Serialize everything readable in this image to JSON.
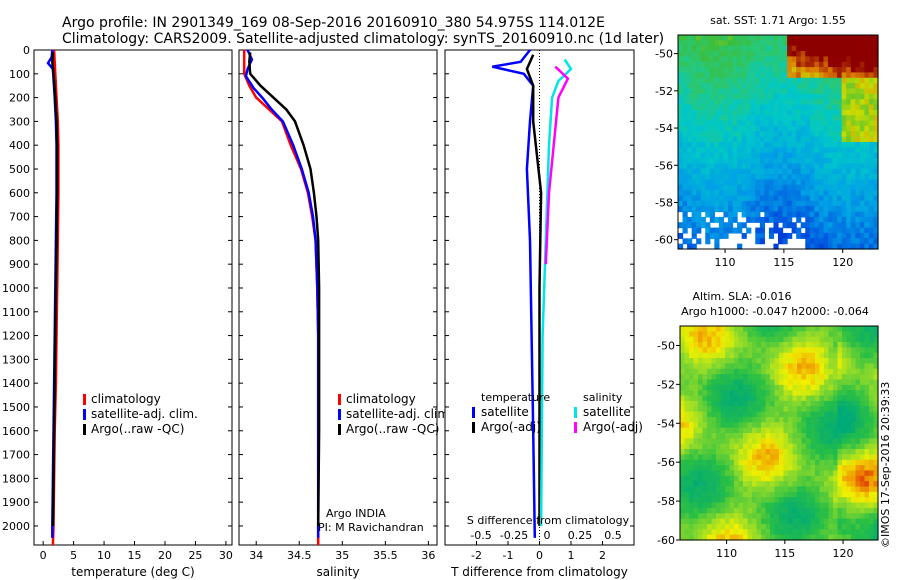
{
  "title": {
    "line1": "Argo profile: IN 2901349_169 08-Sep-2016 20160910_380 54.975S 114.012E",
    "line2": "Climatology: CARS2009. Satellite-adjusted climatology: synTS_20160910.nc (1d later)"
  },
  "watermark": "©IMOS 17-Sep-2016 20:39:33",
  "colors": {
    "climatology": "#ff0000",
    "satellite": "#0000ff",
    "argo": "#000000",
    "sal_sat": "#00e5e5",
    "sal_argo": "#ff00ff"
  },
  "chart_data": [
    {
      "type": "line",
      "xlabel": "temperature (deg C)",
      "xlim": [
        -1.5,
        31
      ],
      "ylim": [
        2080,
        0
      ],
      "xticks": [
        "0",
        "5",
        "10",
        "15",
        "20",
        "25",
        "30"
      ],
      "yticks": [
        "0",
        "100",
        "200",
        "300",
        "400",
        "500",
        "600",
        "700",
        "800",
        "900",
        "1000",
        "1100",
        "1200",
        "1300",
        "1400",
        "1500",
        "1600",
        "1700",
        "1800",
        "1900",
        "2000"
      ],
      "legend": [
        "climatology",
        "satellite-adj. clim.",
        "Argo(..raw -QC)"
      ],
      "series": [
        {
          "name": "climatology",
          "color": "#ff0000",
          "points": [
            [
              1.8,
              0
            ],
            [
              1.9,
              50
            ],
            [
              2.0,
              100
            ],
            [
              2.2,
              200
            ],
            [
              2.4,
              300
            ],
            [
              2.5,
              400
            ],
            [
              2.5,
              600
            ],
            [
              2.4,
              800
            ],
            [
              2.3,
              1000
            ],
            [
              2.2,
              1200
            ],
            [
              2.1,
              1400
            ],
            [
              1.9,
              1600
            ],
            [
              1.8,
              1800
            ],
            [
              1.7,
              2000
            ],
            [
              1.6,
              2080
            ]
          ]
        },
        {
          "name": "satellite-adj. clim.",
          "color": "#0000ff",
          "points": [
            [
              1.5,
              0
            ],
            [
              1.4,
              30
            ],
            [
              0.8,
              55
            ],
            [
              1.6,
              80
            ],
            [
              1.7,
              120
            ],
            [
              1.9,
              200
            ],
            [
              2.1,
              300
            ],
            [
              2.2,
              400
            ],
            [
              2.2,
              600
            ],
            [
              2.1,
              800
            ],
            [
              2.0,
              1000
            ],
            [
              1.9,
              1200
            ],
            [
              1.8,
              1400
            ],
            [
              1.7,
              1600
            ],
            [
              1.6,
              1800
            ],
            [
              1.5,
              2000
            ],
            [
              1.5,
              2050
            ]
          ]
        },
        {
          "name": "Argo(..raw -QC)",
          "color": "#000000",
          "points": [
            [
              1.6,
              10
            ],
            [
              1.5,
              50
            ],
            [
              1.7,
              100
            ],
            [
              2.0,
              200
            ],
            [
              2.2,
              300
            ],
            [
              2.3,
              400
            ],
            [
              2.3,
              600
            ],
            [
              2.2,
              800
            ],
            [
              2.1,
              1000
            ],
            [
              2.0,
              1200
            ],
            [
              1.9,
              1400
            ],
            [
              1.8,
              1600
            ],
            [
              1.7,
              1800
            ],
            [
              1.6,
              2000
            ]
          ]
        }
      ]
    },
    {
      "type": "line",
      "xlabel": "salinity",
      "xlim": [
        33.8,
        36.1
      ],
      "ylim": [
        2080,
        0
      ],
      "xticks": [
        "34",
        "34.5",
        "35",
        "35.5",
        "36"
      ],
      "legend": [
        "climatology",
        "satellite-adj. clim.",
        "Argo(..raw -QC)"
      ],
      "annotation": [
        "Argo INDIA",
        "PI: M Ravichandran"
      ],
      "series": [
        {
          "name": "climatology",
          "color": "#ff0000",
          "points": [
            [
              33.86,
              0
            ],
            [
              33.86,
              100
            ],
            [
              33.92,
              150
            ],
            [
              34.0,
              200
            ],
            [
              34.15,
              250
            ],
            [
              34.3,
              300
            ],
            [
              34.4,
              400
            ],
            [
              34.52,
              500
            ],
            [
              34.6,
              600
            ],
            [
              34.65,
              700
            ],
            [
              34.69,
              800
            ],
            [
              34.71,
              1000
            ],
            [
              34.72,
              1200
            ],
            [
              34.72,
              1600
            ],
            [
              34.72,
              2080
            ]
          ]
        },
        {
          "name": "satellite-adj. clim.",
          "color": "#0000ff",
          "points": [
            [
              33.9,
              0
            ],
            [
              33.95,
              40
            ],
            [
              33.9,
              80
            ],
            [
              33.88,
              110
            ],
            [
              33.97,
              160
            ],
            [
              34.07,
              200
            ],
            [
              34.18,
              250
            ],
            [
              34.31,
              300
            ],
            [
              34.43,
              400
            ],
            [
              34.53,
              500
            ],
            [
              34.61,
              600
            ],
            [
              34.66,
              700
            ],
            [
              34.69,
              800
            ],
            [
              34.71,
              1000
            ],
            [
              34.72,
              1200
            ],
            [
              34.72,
              1600
            ],
            [
              34.72,
              2000
            ],
            [
              34.72,
              2050
            ]
          ]
        },
        {
          "name": "Argo(..raw -QC)",
          "color": "#000000",
          "points": [
            [
              33.93,
              10
            ],
            [
              33.92,
              50
            ],
            [
              33.93,
              100
            ],
            [
              34.05,
              150
            ],
            [
              34.2,
              200
            ],
            [
              34.35,
              250
            ],
            [
              34.45,
              300
            ],
            [
              34.55,
              400
            ],
            [
              34.63,
              500
            ],
            [
              34.67,
              600
            ],
            [
              34.7,
              700
            ],
            [
              34.72,
              800
            ],
            [
              34.73,
              1000
            ],
            [
              34.73,
              1200
            ],
            [
              34.73,
              1600
            ],
            [
              34.72,
              2000
            ]
          ]
        }
      ]
    },
    {
      "type": "line",
      "xlabel": "T difference from climatology",
      "xlabel_top": "S difference from climatology",
      "xlim": [
        -3,
        3
      ],
      "ylim": [
        2080,
        0
      ],
      "xticks": [
        "-2",
        "-1",
        "0",
        "1",
        "2"
      ],
      "xticks_top": [
        "-0.5",
        "-0.25",
        "0",
        "0.25",
        "0.5"
      ],
      "legend_header": [
        "temperature",
        "salinity"
      ],
      "legend": [
        "satellite",
        "Argo(-adj)",
        "satellite",
        "Argo(-adj)"
      ],
      "series": [
        {
          "name": "satellite",
          "group": "temperature",
          "color": "#0000ff",
          "points": [
            [
              -0.3,
              0
            ],
            [
              -0.6,
              50
            ],
            [
              -1.5,
              70
            ],
            [
              -0.5,
              100
            ],
            [
              -0.2,
              150
            ],
            [
              -0.3,
              300
            ],
            [
              -0.4,
              500
            ],
            [
              -0.3,
              800
            ],
            [
              -0.25,
              1200
            ],
            [
              -0.2,
              1600
            ],
            [
              -0.15,
              2050
            ]
          ]
        },
        {
          "name": "Argo(-adj)",
          "group": "temperature",
          "color": "#000000",
          "points": [
            [
              -0.2,
              20
            ],
            [
              -0.4,
              80
            ],
            [
              -0.2,
              150
            ],
            [
              -0.2,
              300
            ],
            [
              0.05,
              600
            ],
            [
              0,
              1000
            ],
            [
              0,
              1400
            ],
            [
              0,
              1800
            ],
            [
              0,
              2000
            ]
          ]
        },
        {
          "name": "satellite",
          "group": "salinity",
          "color": "#00e5e5",
          "points": [
            [
              0.8,
              40
            ],
            [
              1.0,
              80
            ],
            [
              0.6,
              130
            ],
            [
              0.4,
              200
            ],
            [
              0.3,
              400
            ],
            [
              0.2,
              800
            ],
            [
              0.1,
              1200
            ],
            [
              0.05,
              2000
            ]
          ]
        },
        {
          "name": "Argo(-adj)",
          "group": "salinity",
          "color": "#ff00ff",
          "points": [
            [
              0.5,
              70
            ],
            [
              0.9,
              120
            ],
            [
              0.6,
              200
            ],
            [
              0.45,
              400
            ],
            [
              0.3,
              600
            ],
            [
              0.2,
              900
            ]
          ]
        }
      ]
    },
    {
      "type": "heatmap",
      "title": "sat. SST: 1.71 Argo: 1.55",
      "xticks": [
        "110",
        "115",
        "120"
      ],
      "yticks": [
        "-50",
        "-52",
        "-54",
        "-56",
        "-58",
        "-60"
      ],
      "xlim": [
        106,
        123
      ],
      "ylim": [
        -60.5,
        -49
      ]
    },
    {
      "type": "heatmap",
      "title": "Altim. SLA: -0.016",
      "subtitle": "Argo h1000: -0.047 h2000: -0.064",
      "xticks": [
        "110",
        "115",
        "120"
      ],
      "yticks": [
        "-50",
        "-52",
        "-54",
        "-56",
        "-58",
        "-60"
      ],
      "xlim": [
        106,
        123
      ],
      "ylim": [
        -60,
        -49
      ]
    }
  ]
}
